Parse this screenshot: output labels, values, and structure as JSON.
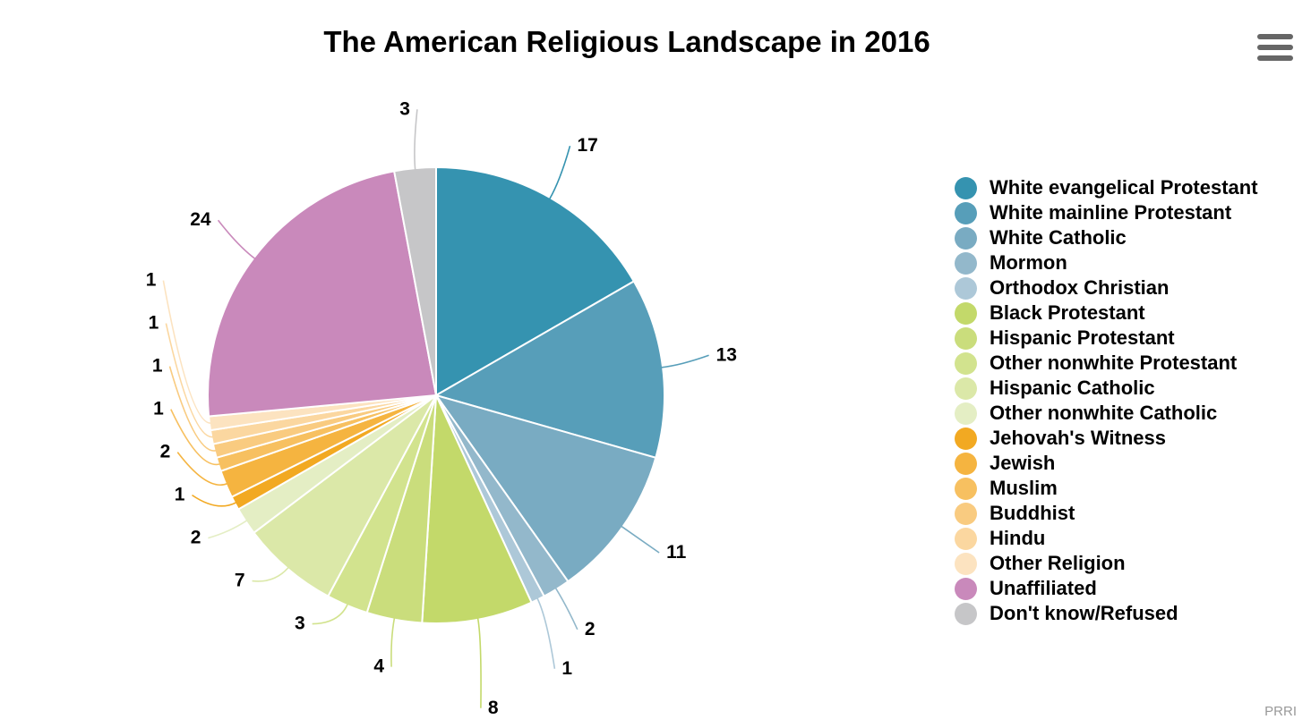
{
  "title": "The American Religious Landscape in 2016",
  "credit": "PRRI",
  "menu_icon": "hamburger-menu-icon",
  "chart_data": {
    "type": "pie",
    "title": "The American Religious Landscape in 2016",
    "legend_position": "right",
    "slices": [
      {
        "name": "White evangelical Protestant",
        "value": 17,
        "color": "#3593b0"
      },
      {
        "name": "White mainline Protestant",
        "value": 13,
        "color": "#579eb9"
      },
      {
        "name": "White Catholic",
        "value": 11,
        "color": "#79abc2"
      },
      {
        "name": "Mormon",
        "value": 2,
        "color": "#93b8cb"
      },
      {
        "name": "Orthodox Christian",
        "value": 1,
        "color": "#adc8d8"
      },
      {
        "name": "Black Protestant",
        "value": 8,
        "color": "#c3d96a"
      },
      {
        "name": "Hispanic Protestant",
        "value": 4,
        "color": "#cadd7c"
      },
      {
        "name": "Other nonwhite Protestant",
        "value": 3,
        "color": "#d2e38e"
      },
      {
        "name": "Hispanic Catholic",
        "value": 7,
        "color": "#dbe8a8"
      },
      {
        "name": "Other nonwhite Catholic",
        "value": 2,
        "color": "#e4eec4"
      },
      {
        "name": "Jehovah's Witness",
        "value": 1,
        "color": "#f2a922"
      },
      {
        "name": "Jewish",
        "value": 2,
        "color": "#f5b440"
      },
      {
        "name": "Muslim",
        "value": 1,
        "color": "#f7c060"
      },
      {
        "name": "Buddhist",
        "value": 1,
        "color": "#f9cb80"
      },
      {
        "name": "Hindu",
        "value": 1,
        "color": "#fbd7a0"
      },
      {
        "name": "Other Religion",
        "value": 1,
        "color": "#fce3c0"
      },
      {
        "name": "Unaffiliated",
        "value": 24,
        "color": "#c989bb"
      },
      {
        "name": "Don't know/Refused",
        "value": 3,
        "color": "#c6c6c8"
      }
    ]
  }
}
